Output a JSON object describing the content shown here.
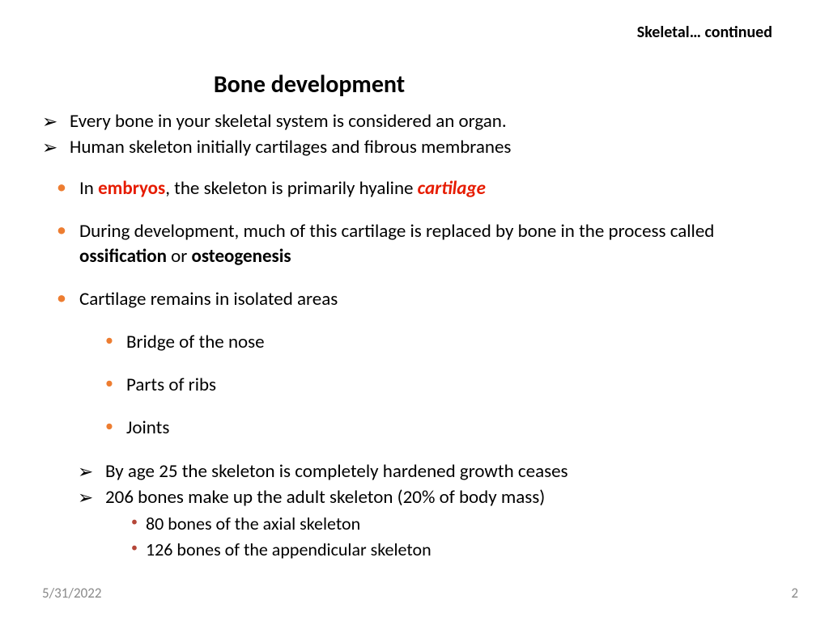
{
  "header": {
    "label": "Skeletal… continued"
  },
  "title": "Bone development",
  "intro_arrows": [
    "Every bone in your skeletal system is considered an organ.",
    "Human skeleton initially cartilages and fibrous membranes"
  ],
  "bullets": {
    "b1_pre": "In ",
    "b1_em1": "embryos",
    "b1_mid": ", the skeleton is primarily hyaline ",
    "b1_em2": "cartilage",
    "b2_pre": "During development, much of this cartilage is replaced by bone in the process called ",
    "b2_bold1": "ossification",
    "b2_mid": " or ",
    "b2_bold2": "osteogenesis",
    "b3": "Cartilage remains in isolated areas"
  },
  "sub_bullets": [
    "Bridge of the nose",
    "Parts of ribs",
    "Joints"
  ],
  "closing_arrows": [
    "By age 25 the skeleton is completely hardened growth ceases",
    "206 bones make up the adult skeleton (20% of body mass)"
  ],
  "tiny_bullets": [
    "80 bones of the axial skeleton",
    "126 bones of the appendicular skeleton"
  ],
  "footer": {
    "date": "5/31/2022",
    "page": "2"
  },
  "glyphs": {
    "arrow": "➢",
    "dot": "•"
  }
}
